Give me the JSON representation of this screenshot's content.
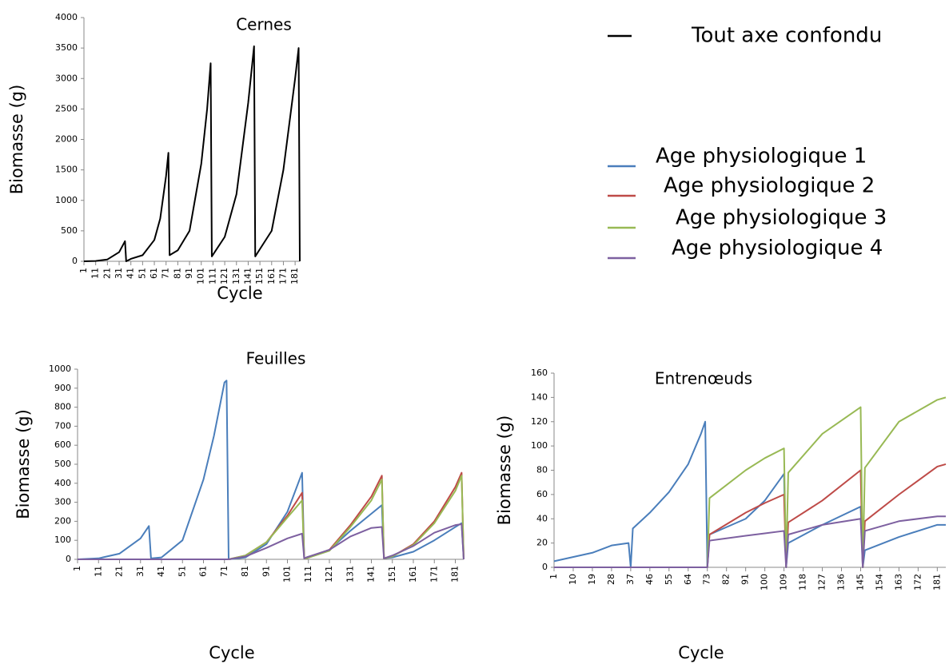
{
  "chart_data": [
    {
      "type": "line",
      "title": "Cernes",
      "xlabel": "Cycle",
      "ylabel": "Biomasse (g)",
      "x": [
        1,
        11,
        21,
        31,
        36,
        37,
        41,
        51,
        61,
        66,
        71,
        73,
        74,
        81,
        91,
        101,
        106,
        109,
        110,
        121,
        131,
        141,
        146,
        147,
        151,
        161,
        171,
        181,
        184,
        185
      ],
      "series": [
        {
          "name": "Tout axe confondu",
          "color": "#000000",
          "values": [
            0,
            5,
            30,
            150,
            330,
            0,
            40,
            100,
            350,
            700,
            1400,
            1780,
            100,
            180,
            500,
            1600,
            2500,
            3250,
            80,
            400,
            1100,
            2600,
            3530,
            80,
            200,
            500,
            1500,
            3000,
            3500,
            0
          ]
        }
      ],
      "xlim": [
        1,
        185
      ],
      "xticks": [
        1,
        11,
        21,
        31,
        41,
        51,
        61,
        71,
        81,
        91,
        101,
        111,
        121,
        131,
        141,
        151,
        161,
        171,
        181
      ],
      "ylim": [
        0,
        4000
      ],
      "yticks": [
        0,
        500,
        1000,
        1500,
        2000,
        2500,
        3000,
        3500,
        4000
      ]
    },
    {
      "type": "line",
      "title": "Feuilles",
      "xlabel": "Cycle",
      "ylabel": "Biomasse  (g)",
      "x": [
        1,
        11,
        21,
        31,
        35,
        36,
        41,
        51,
        61,
        66,
        71,
        72,
        73,
        81,
        91,
        101,
        108,
        109,
        110,
        121,
        131,
        141,
        146,
        147,
        151,
        161,
        171,
        181,
        184,
        185
      ],
      "series": [
        {
          "name": "Age physiologique 1",
          "color": "#4a7ebb",
          "values": [
            0,
            5,
            30,
            110,
            175,
            5,
            10,
            100,
            420,
            650,
            930,
            940,
            0,
            10,
            80,
            250,
            455,
            5,
            5,
            50,
            150,
            240,
            285,
            5,
            10,
            40,
            100,
            170,
            190,
            0
          ]
        },
        {
          "name": "Age physiologique 2",
          "color": "#be4b48",
          "values": [
            0,
            0,
            0,
            0,
            0,
            0,
            0,
            0,
            0,
            0,
            0,
            0,
            0,
            20,
            90,
            230,
            350,
            5,
            5,
            50,
            180,
            330,
            440,
            5,
            15,
            80,
            200,
            380,
            455,
            0
          ]
        },
        {
          "name": "Age physiologique 3",
          "color": "#98b954",
          "values": [
            0,
            0,
            0,
            0,
            0,
            0,
            0,
            0,
            0,
            0,
            0,
            0,
            0,
            20,
            90,
            220,
            310,
            5,
            5,
            45,
            170,
            310,
            420,
            5,
            15,
            75,
            190,
            360,
            440,
            0
          ]
        },
        {
          "name": "Age physiologique 4",
          "color": "#7d60a0",
          "values": [
            0,
            0,
            0,
            0,
            0,
            0,
            0,
            0,
            0,
            0,
            0,
            0,
            0,
            15,
            60,
            110,
            135,
            5,
            10,
            50,
            120,
            165,
            170,
            5,
            20,
            70,
            140,
            180,
            185,
            0
          ]
        }
      ],
      "xlim": [
        1,
        185
      ],
      "xticks": [
        1,
        11,
        21,
        31,
        41,
        51,
        61,
        71,
        81,
        91,
        101,
        111,
        121,
        131,
        141,
        151,
        161,
        171,
        181
      ],
      "ylim": [
        0,
        1000
      ],
      "yticks": [
        0,
        100,
        200,
        300,
        400,
        500,
        600,
        700,
        800,
        900,
        1000
      ]
    },
    {
      "type": "line",
      "title": "Entrenœuds",
      "xlabel": "Cycle",
      "ylabel": "Biomasse (g)",
      "x": [
        1,
        19,
        28,
        36,
        37,
        38,
        46,
        55,
        64,
        70,
        72,
        73,
        74,
        91,
        100,
        109,
        110,
        111,
        127,
        145,
        146,
        147,
        163,
        181,
        185
      ],
      "series": [
        {
          "color": "#4a7ebb",
          "values": [
            5,
            12,
            18,
            20,
            0,
            32,
            45,
            62,
            85,
            110,
            120,
            0,
            27,
            40,
            55,
            77,
            0,
            20,
            35,
            50,
            0,
            14,
            25,
            35,
            35
          ]
        },
        {
          "color": "#be4b48",
          "values": [
            0,
            0,
            0,
            0,
            0,
            0,
            0,
            0,
            0,
            0,
            0,
            0,
            27,
            45,
            53,
            60,
            0,
            37,
            55,
            80,
            0,
            38,
            60,
            83,
            85
          ]
        },
        {
          "color": "#98b954",
          "values": [
            0,
            0,
            0,
            0,
            0,
            0,
            0,
            0,
            0,
            0,
            0,
            0,
            57,
            80,
            90,
            98,
            0,
            78,
            110,
            132,
            0,
            82,
            120,
            138,
            140
          ]
        },
        {
          "color": "#7d60a0",
          "values": [
            0,
            0,
            0,
            0,
            0,
            0,
            0,
            0,
            0,
            0,
            0,
            0,
            22,
            26,
            28,
            30,
            0,
            27,
            35,
            40,
            0,
            30,
            38,
            42,
            42
          ]
        }
      ],
      "xlim": [
        1,
        185
      ],
      "xticks": [
        1,
        10,
        19,
        28,
        37,
        46,
        55,
        64,
        73,
        82,
        91,
        100,
        109,
        118,
        127,
        136,
        145,
        154,
        163,
        172,
        181
      ],
      "ylim": [
        0,
        160
      ],
      "yticks": [
        0,
        20,
        40,
        60,
        80,
        100,
        120,
        140,
        160
      ]
    }
  ]
}
